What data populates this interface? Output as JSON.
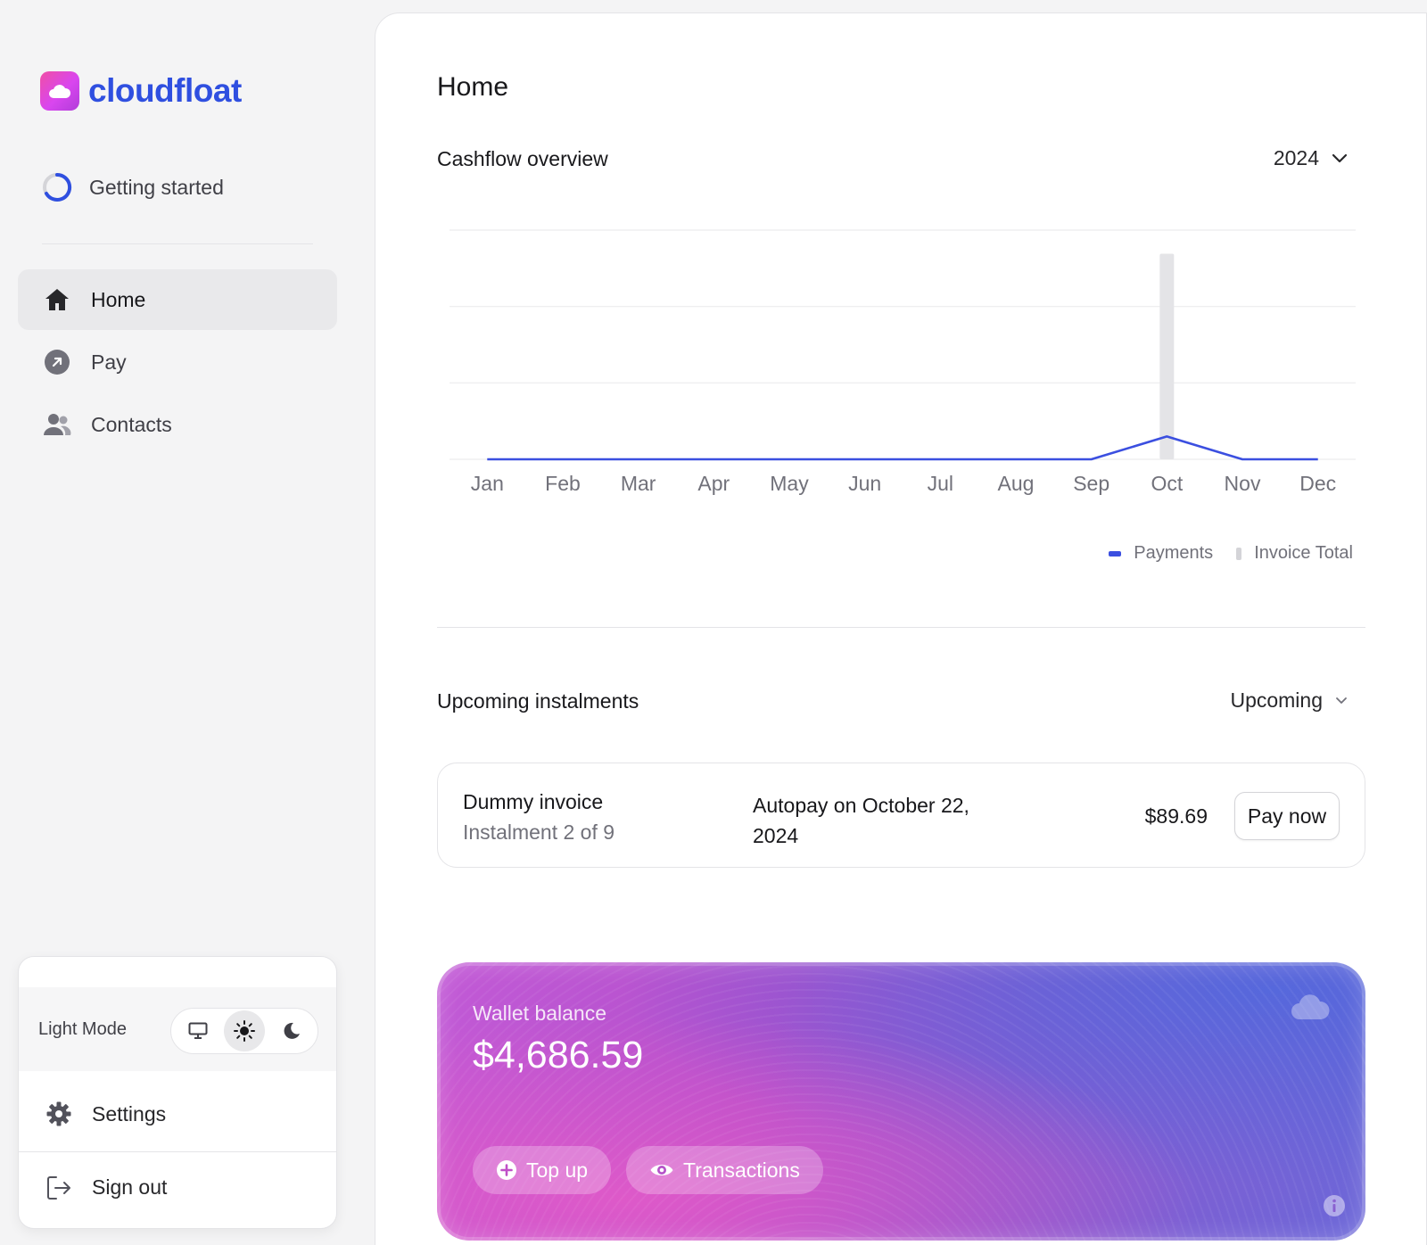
{
  "brand": {
    "name": "cloudfloat",
    "accent": "#2f4fe0"
  },
  "sidebar": {
    "getting_started": {
      "label": "Getting started",
      "icon": "progress-ring-icon"
    },
    "items": [
      {
        "label": "Home",
        "icon": "home-icon",
        "active": true
      },
      {
        "label": "Pay",
        "icon": "arrow-up-right-circle-icon",
        "active": false
      },
      {
        "label": "Contacts",
        "icon": "users-icon",
        "active": false
      }
    ],
    "theme": {
      "label": "Light Mode",
      "options": [
        "system",
        "light",
        "dark"
      ],
      "selected": "light"
    },
    "settings_label": "Settings",
    "signout_label": "Sign out"
  },
  "main": {
    "title": "Home",
    "cashflow": {
      "title": "Cashflow overview",
      "year": "2024"
    },
    "instalments": {
      "title": "Upcoming instalments",
      "filter": "Upcoming",
      "items": [
        {
          "name": "Dummy invoice",
          "sub": "Instalment 2 of 9",
          "autopay": "Autopay on October 22, 2024",
          "amount": "$89.69",
          "action": "Pay now"
        }
      ]
    },
    "wallet": {
      "label": "Wallet balance",
      "amount": "$4,686.59",
      "topup_label": "Top up",
      "transactions_label": "Transactions"
    }
  },
  "chart_data": {
    "type": "line",
    "categories": [
      "Jan",
      "Feb",
      "Mar",
      "Apr",
      "May",
      "Jun",
      "Jul",
      "Aug",
      "Sep",
      "Oct",
      "Nov",
      "Dec"
    ],
    "series": [
      {
        "name": "Payments",
        "type": "line",
        "color": "#3b4fe0",
        "values": [
          0,
          0,
          0,
          0,
          0,
          0,
          0,
          0,
          0,
          89.69,
          0,
          0
        ]
      },
      {
        "name": "Invoice Total",
        "type": "bar",
        "color": "#e4e4e7",
        "values": [
          0,
          0,
          0,
          0,
          0,
          0,
          0,
          0,
          0,
          807.21,
          0,
          0
        ]
      }
    ],
    "ylim": [
      0,
      900
    ],
    "grid": true,
    "legend": "bottom-right"
  }
}
